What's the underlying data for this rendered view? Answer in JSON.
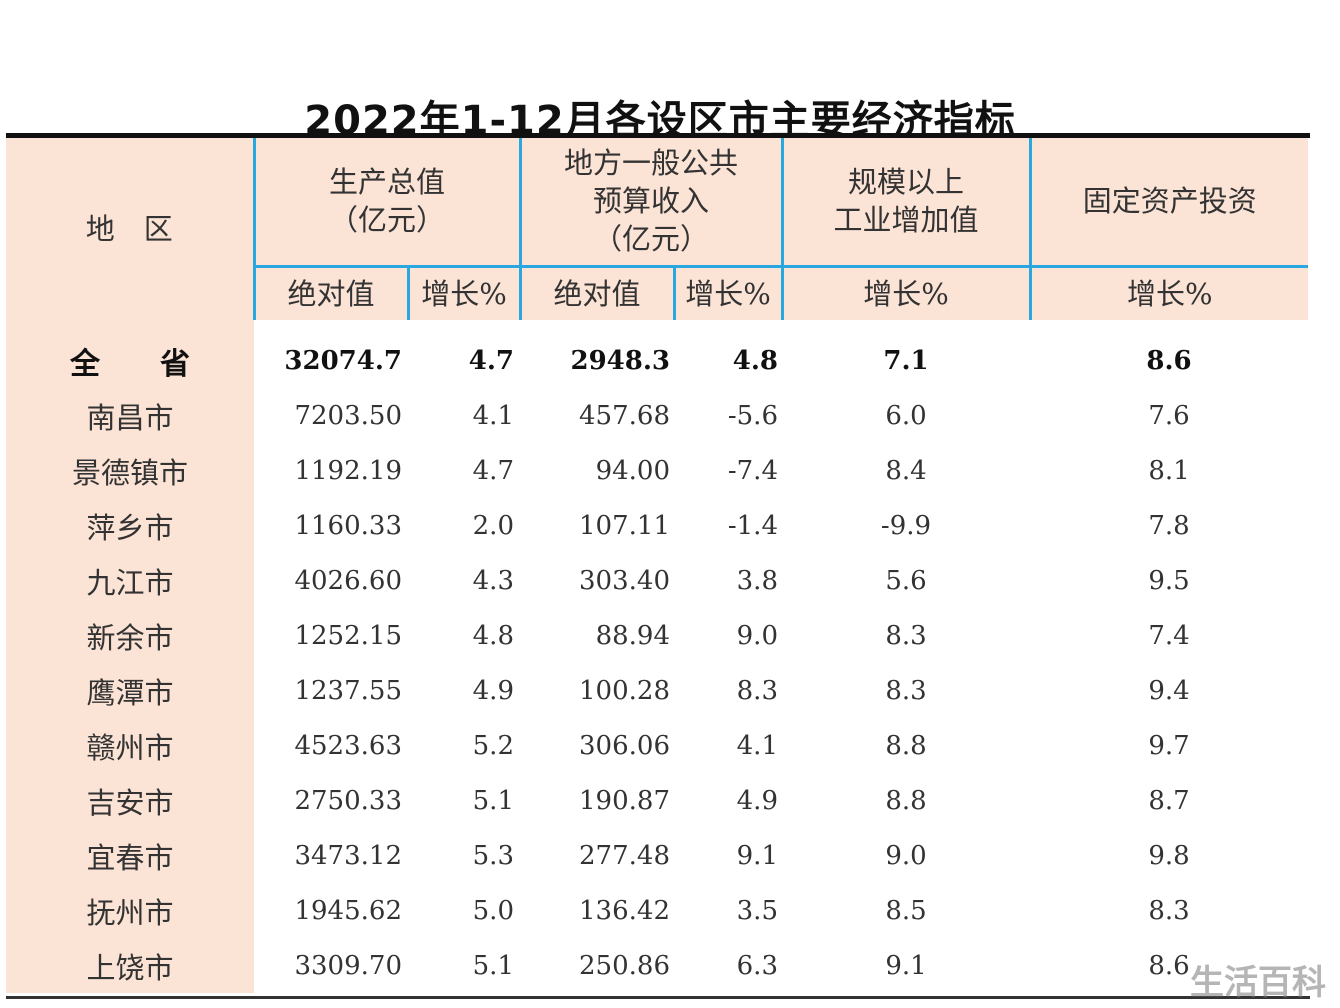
{
  "title": "2022年1-12月各设区市主要经济指标",
  "header": {
    "region": "地　区",
    "gdp": "生产总值\n（亿元）",
    "budget": "地方一般公共\n预算收入\n（亿元）",
    "industry": "规模以上\n工业增加值",
    "investment": "固定资产投资",
    "abs": "绝对值",
    "growth": "增长%"
  },
  "rows": [
    {
      "region": "全　　省",
      "gdp": "32074.7",
      "gdp_g": "4.7",
      "bud": "2948.3",
      "bud_g": "4.8",
      "ind_g": "7.1",
      "inv_g": "8.6"
    },
    {
      "region": "南昌市",
      "gdp": "7203.50",
      "gdp_g": "4.1",
      "bud": "457.68",
      "bud_g": "-5.6",
      "ind_g": "6.0",
      "inv_g": "7.6"
    },
    {
      "region": "景德镇市",
      "gdp": "1192.19",
      "gdp_g": "4.7",
      "bud": "94.00",
      "bud_g": "-7.4",
      "ind_g": "8.4",
      "inv_g": "8.1"
    },
    {
      "region": "萍乡市",
      "gdp": "1160.33",
      "gdp_g": "2.0",
      "bud": "107.11",
      "bud_g": "-1.4",
      "ind_g": "-9.9",
      "inv_g": "7.8"
    },
    {
      "region": "九江市",
      "gdp": "4026.60",
      "gdp_g": "4.3",
      "bud": "303.40",
      "bud_g": "3.8",
      "ind_g": "5.6",
      "inv_g": "9.5"
    },
    {
      "region": "新余市",
      "gdp": "1252.15",
      "gdp_g": "4.8",
      "bud": "88.94",
      "bud_g": "9.0",
      "ind_g": "8.3",
      "inv_g": "7.4"
    },
    {
      "region": "鹰潭市",
      "gdp": "1237.55",
      "gdp_g": "4.9",
      "bud": "100.28",
      "bud_g": "8.3",
      "ind_g": "8.3",
      "inv_g": "9.4"
    },
    {
      "region": "赣州市",
      "gdp": "4523.63",
      "gdp_g": "5.2",
      "bud": "306.06",
      "bud_g": "4.1",
      "ind_g": "8.8",
      "inv_g": "9.7"
    },
    {
      "region": "吉安市",
      "gdp": "2750.33",
      "gdp_g": "5.1",
      "bud": "190.87",
      "bud_g": "4.9",
      "ind_g": "8.8",
      "inv_g": "8.7"
    },
    {
      "region": "宜春市",
      "gdp": "3473.12",
      "gdp_g": "5.3",
      "bud": "277.48",
      "bud_g": "9.1",
      "ind_g": "9.0",
      "inv_g": "9.8"
    },
    {
      "region": "抚州市",
      "gdp": "1945.62",
      "gdp_g": "5.0",
      "bud": "136.42",
      "bud_g": "3.5",
      "ind_g": "8.5",
      "inv_g": "8.3"
    },
    {
      "region": "上饶市",
      "gdp": "3309.70",
      "gdp_g": "5.1",
      "bud": "250.86",
      "bud_g": "6.3",
      "ind_g": "9.1",
      "inv_g": "8.6"
    }
  ],
  "watermark": "生活百科",
  "colors": {
    "header_bg": "#fbe3d6",
    "rule_blue": "#29a8e0"
  }
}
